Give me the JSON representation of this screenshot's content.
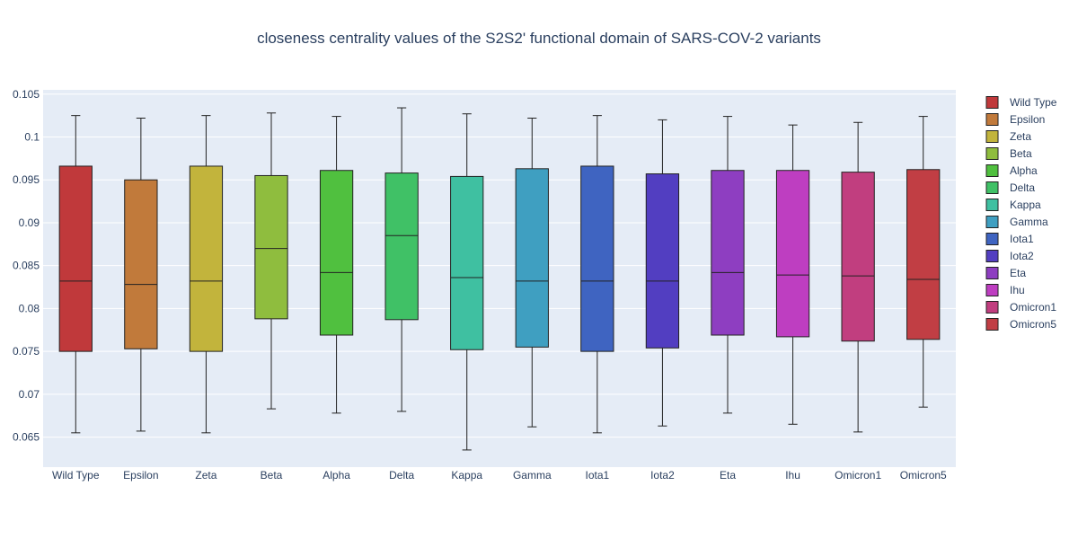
{
  "chart_data": {
    "type": "box",
    "title": "closeness centrality values of the S2S2' functional domain of SARS-COV-2 variants",
    "xlabel": "",
    "ylabel": "",
    "ylim": [
      0.0615,
      0.1055
    ],
    "yticks": [
      0.065,
      0.07,
      0.075,
      0.08,
      0.085,
      0.09,
      0.095,
      0.1,
      0.105
    ],
    "ytick_labels": [
      "0.065",
      "0.07",
      "0.075",
      "0.08",
      "0.085",
      "0.09",
      "0.095",
      "0.1",
      "0.105"
    ],
    "grid": true,
    "legend_position": "right",
    "categories": [
      "Wild Type",
      "Epsilon",
      "Zeta",
      "Beta",
      "Alpha",
      "Delta",
      "Kappa",
      "Gamma",
      "Iota1",
      "Iota2",
      "Eta",
      "Ihu",
      "Omicron1",
      "Omicron5"
    ],
    "series": [
      {
        "name": "Wild Type",
        "color": "#c0393b",
        "min": 0.0655,
        "q1": 0.075,
        "median": 0.0832,
        "q3": 0.0966,
        "max": 0.1025
      },
      {
        "name": "Epsilon",
        "color": "#c17a3b",
        "min": 0.0657,
        "q1": 0.0753,
        "median": 0.0828,
        "q3": 0.095,
        "max": 0.1022
      },
      {
        "name": "Zeta",
        "color": "#c2b43c",
        "min": 0.0655,
        "q1": 0.075,
        "median": 0.0832,
        "q3": 0.0966,
        "max": 0.1025
      },
      {
        "name": "Beta",
        "color": "#8fbd3e",
        "min": 0.0683,
        "q1": 0.0788,
        "median": 0.087,
        "q3": 0.0955,
        "max": 0.1028
      },
      {
        "name": "Alpha",
        "color": "#50c03f",
        "min": 0.0678,
        "q1": 0.0769,
        "median": 0.0842,
        "q3": 0.0961,
        "max": 0.1024
      },
      {
        "name": "Delta",
        "color": "#40c166",
        "min": 0.068,
        "q1": 0.0787,
        "median": 0.0885,
        "q3": 0.0958,
        "max": 0.1034
      },
      {
        "name": "Kappa",
        "color": "#3fc0a1",
        "min": 0.0635,
        "q1": 0.0752,
        "median": 0.0836,
        "q3": 0.0954,
        "max": 0.1027
      },
      {
        "name": "Gamma",
        "color": "#3f9fc1",
        "min": 0.0662,
        "q1": 0.0755,
        "median": 0.0832,
        "q3": 0.0963,
        "max": 0.1022
      },
      {
        "name": "Iota1",
        "color": "#3f64c1",
        "min": 0.0655,
        "q1": 0.075,
        "median": 0.0832,
        "q3": 0.0966,
        "max": 0.1025
      },
      {
        "name": "Iota2",
        "color": "#523ec1",
        "min": 0.0663,
        "q1": 0.0754,
        "median": 0.0832,
        "q3": 0.0957,
        "max": 0.102
      },
      {
        "name": "Eta",
        "color": "#8e3ec1",
        "min": 0.0678,
        "q1": 0.0769,
        "median": 0.0842,
        "q3": 0.0961,
        "max": 0.1024
      },
      {
        "name": "Ihu",
        "color": "#be3ec1",
        "min": 0.0665,
        "q1": 0.0767,
        "median": 0.0839,
        "q3": 0.0961,
        "max": 0.1014
      },
      {
        "name": "Omicron1",
        "color": "#c13e7f",
        "min": 0.0656,
        "q1": 0.0762,
        "median": 0.0838,
        "q3": 0.0959,
        "max": 0.1017
      },
      {
        "name": "Omicron5",
        "color": "#c13e44",
        "min": 0.0685,
        "q1": 0.0764,
        "median": 0.0834,
        "q3": 0.0962,
        "max": 0.1024
      }
    ]
  }
}
